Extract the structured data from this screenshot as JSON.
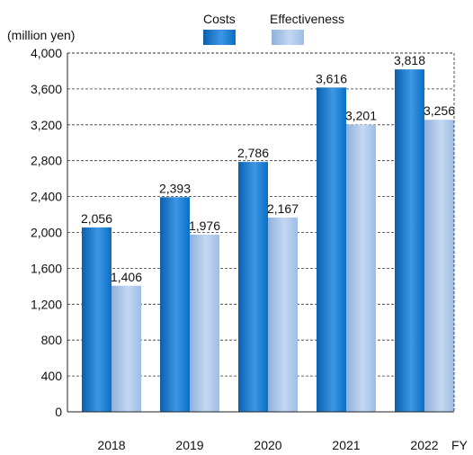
{
  "chart_data": {
    "type": "bar",
    "unit_label": "(million yen)",
    "x_suffix": "FY",
    "categories": [
      "2018",
      "2019",
      "2020",
      "2021",
      "2022"
    ],
    "series": [
      {
        "name": "Costs",
        "values": [
          2056,
          2393,
          2786,
          3616,
          3818
        ],
        "color": "#0a6ec4",
        "color_dark": "#0a5fae",
        "color_light": "#3d97e6"
      },
      {
        "name": "Effectiveness",
        "values": [
          1406,
          1976,
          2167,
          3201,
          3256
        ],
        "color": "#9ebde6",
        "color_dark": "#8fb0dc",
        "color_light": "#c4d8f2"
      }
    ],
    "value_labels": [
      [
        "2,056",
        "2,393",
        "2,786",
        "3,616",
        "3,818"
      ],
      [
        "1,406",
        "1,976",
        "2,167",
        "3,201",
        "3,256"
      ]
    ],
    "yticks": [
      0,
      400,
      800,
      1200,
      1600,
      2000,
      2400,
      2800,
      3200,
      3600,
      4000
    ],
    "ytick_labels": [
      "0",
      "400",
      "800",
      "1,200",
      "1,600",
      "2,000",
      "2,400",
      "2,800",
      "3,200",
      "3,600",
      "4,000"
    ],
    "ylim": [
      0,
      4000
    ],
    "grid": "dashed-horizontal",
    "legend": "top-center"
  }
}
